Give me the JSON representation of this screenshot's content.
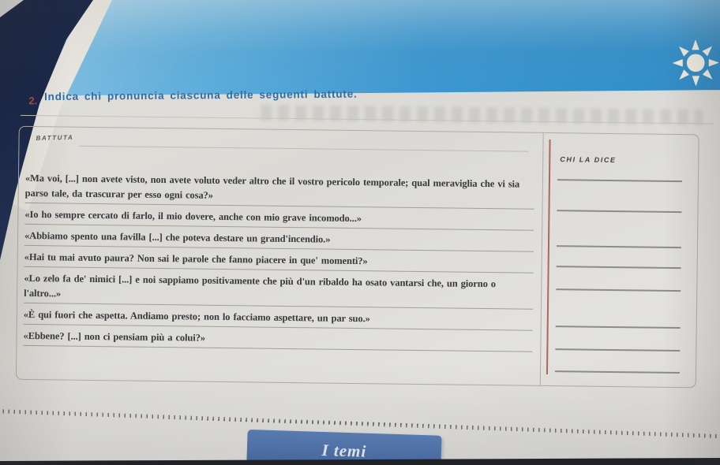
{
  "page": {
    "exercise_number": "2.",
    "instruction": "Indica chi pronuncia ciascuna delle seguenti battute.",
    "table": {
      "battuta_header": "BATTUTA",
      "chi_la_dice_header": "CHI LA DICE",
      "battute": [
        "«Ma voi, [...] non avete visto, non avete voluto veder altro che il vostro pericolo temporale; qual meraviglia che vi sia parso tale, da trascurar per esso ogni cosa?»",
        "«Io ho sempre cercato di farlo, il mio dovere, anche con mio grave incomodo...»",
        "«Abbiamo spento una favilla [...] che poteva destare un grand'incendio.»",
        "«Hai tu mai avuto paura? Non sai le parole che fanno piacere in que' momenti?»",
        "«Lo zelo fa de' nimici [...] e noi sappiamo positivamente che più d'un ribaldo ha osato vantarsi che, un giorno o l'altro...»",
        "«È qui fuori che aspetta. Andiamo presto; non lo facciamo aspettare, un par suo.»",
        "«Ebbene? [...] non ci pensiam più a colui?»"
      ],
      "answer_line_count": 8
    },
    "footer_banner": "I temi"
  },
  "icons": {
    "top_right": "sun-burst-icon"
  },
  "colors": {
    "band_blue": "#3c98d2",
    "instruction_blue": "#2e6ca6",
    "exercise_number_red": "#b5473f",
    "banner_blue": "#4e73ad",
    "divider_red": "#a2544a",
    "page_background": "#dbdad6"
  }
}
